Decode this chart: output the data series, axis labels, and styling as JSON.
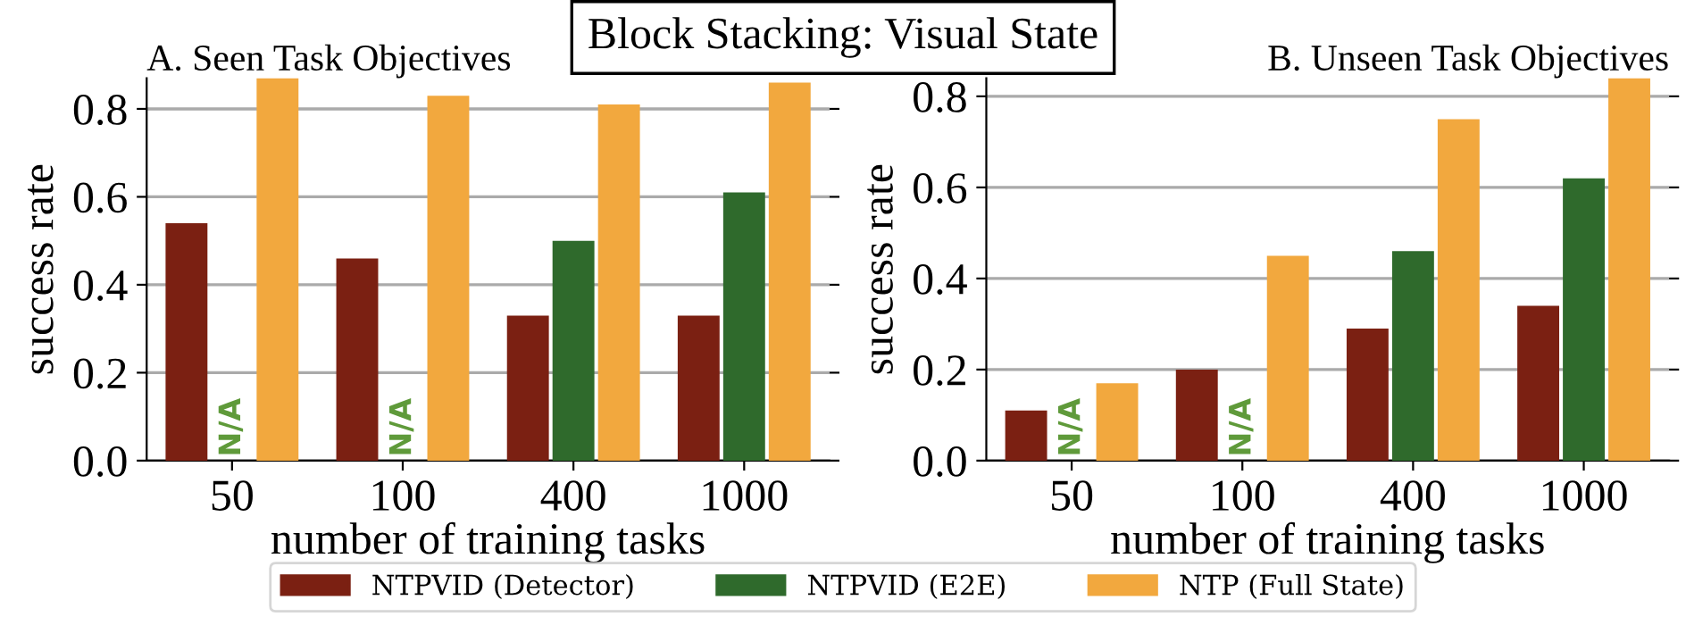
{
  "chart_data": [
    {
      "type": "bar",
      "title": "A. Seen Task Objectives",
      "xlabel": "number of training tasks",
      "ylabel": "success rate",
      "categories": [
        "50",
        "100",
        "400",
        "1000"
      ],
      "series": [
        {
          "name": "NTPVID (Detector)",
          "color": "#7b2012",
          "values": [
            0.54,
            0.46,
            0.33,
            0.33
          ]
        },
        {
          "name": "NTPVID (E2E)",
          "color": "#2f6a2c",
          "values": [
            null,
            null,
            0.5,
            0.61
          ]
        },
        {
          "name": "NTP (Full State)",
          "color": "#f2a83e",
          "values": [
            0.87,
            0.83,
            0.81,
            0.86
          ]
        }
      ],
      "ylim": [
        0,
        0.87
      ],
      "yticks": [
        {
          "value": 0,
          "label": "0.0"
        },
        0.2,
        0.4,
        0.6,
        0.8
      ],
      "grid": "y",
      "legend": "bottom",
      "annotations": [
        "Block Stacking: Visual State",
        "N/A",
        "N/A"
      ]
    },
    {
      "type": "bar",
      "title": "B. Unseen Task Objectives",
      "xlabel": "number of training tasks",
      "ylabel": "success rate",
      "categories": [
        "50",
        "100",
        "400",
        "1000"
      ],
      "series": [
        {
          "name": "NTPVID (Detector)",
          "color": "#7b2012",
          "values": [
            0.11,
            0.2,
            0.29,
            0.34
          ]
        },
        {
          "name": "NTPVID (E2E)",
          "color": "#2f6a2c",
          "values": [
            null,
            null,
            0.46,
            0.62
          ]
        },
        {
          "name": "NTP (Full State)",
          "color": "#f2a83e",
          "values": [
            0.17,
            0.45,
            0.75,
            0.84
          ]
        }
      ],
      "ylim": [
        0,
        0.84
      ],
      "yticks": [
        {
          "value": 0,
          "label": "0.0"
        },
        0.2,
        0.4,
        0.6,
        0.8
      ],
      "grid": "y",
      "legend": "bottom",
      "annotations": [
        "N/A",
        "N/A"
      ]
    }
  ]
}
